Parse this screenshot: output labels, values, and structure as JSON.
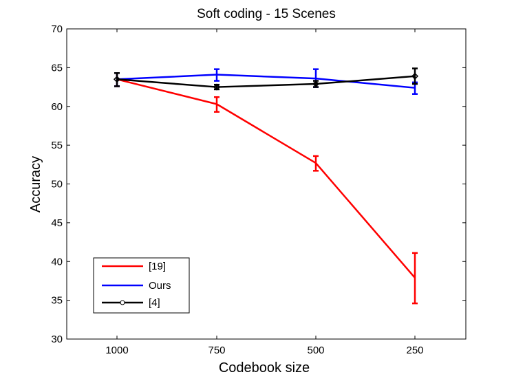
{
  "chart_data": {
    "type": "line",
    "title": "Soft coding - 15 Scenes",
    "xlabel": "Codebook size",
    "ylabel": "Accuracy",
    "categories": [
      "1000",
      "750",
      "500",
      "250"
    ],
    "ylim": [
      30,
      70
    ],
    "yticks": [
      30,
      35,
      40,
      45,
      50,
      55,
      60,
      65,
      70
    ],
    "grid": false,
    "legend_position": "bottom-left",
    "series": [
      {
        "name": "[19]",
        "color": "#ff0000",
        "marker": "none",
        "values": [
          63.5,
          60.3,
          52.7,
          37.9
        ],
        "error_low": [
          62.6,
          59.3,
          51.7,
          34.6
        ],
        "error_high": [
          64.3,
          61.2,
          53.6,
          41.1
        ]
      },
      {
        "name": "Ours",
        "color": "#0000ff",
        "marker": "none",
        "values": [
          63.5,
          64.1,
          63.6,
          62.4
        ],
        "error_low": [
          62.6,
          63.3,
          62.5,
          61.6
        ],
        "error_high": [
          64.3,
          64.8,
          64.8,
          63.1
        ]
      },
      {
        "name": "[4]",
        "color": "#000000",
        "marker": "diamond",
        "values": [
          63.5,
          62.5,
          62.9,
          63.9
        ],
        "error_low": [
          62.6,
          62.2,
          62.5,
          62.9
        ],
        "error_high": [
          64.3,
          62.8,
          63.3,
          64.9
        ]
      }
    ]
  }
}
